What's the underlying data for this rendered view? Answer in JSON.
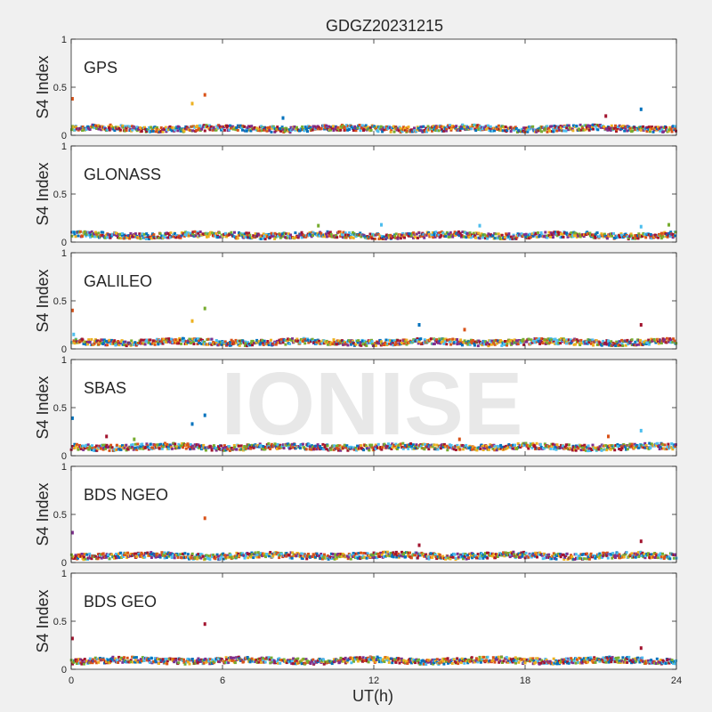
{
  "chart_data": {
    "type": "scatter",
    "title": "GDGZ20231215",
    "xlabel": "UT(h)",
    "ylabel": "S4 Index",
    "xlim": [
      0,
      24
    ],
    "ylim": [
      0,
      1
    ],
    "xticks": [
      "0",
      "6",
      "12",
      "18",
      "24"
    ],
    "yticks": [
      "0",
      "0.5",
      "1"
    ],
    "watermark": "IONISE",
    "colors": [
      "#0072bd",
      "#d95319",
      "#edb120",
      "#7e2f8e",
      "#77ac30",
      "#4dbeee",
      "#a2142f"
    ],
    "panels": [
      {
        "label": "GPS",
        "baseline": 0.07,
        "spikes": [
          {
            "x": 0.05,
            "y": 0.38,
            "series": 1
          },
          {
            "x": 4.8,
            "y": 0.33,
            "series": 2
          },
          {
            "x": 5.3,
            "y": 0.42,
            "series": 1
          },
          {
            "x": 8.4,
            "y": 0.18,
            "series": 0
          },
          {
            "x": 21.2,
            "y": 0.2,
            "series": 6
          },
          {
            "x": 22.6,
            "y": 0.27,
            "series": 0
          }
        ]
      },
      {
        "label": "GLONASS",
        "baseline": 0.07,
        "spikes": [
          {
            "x": 9.8,
            "y": 0.17,
            "series": 4
          },
          {
            "x": 12.3,
            "y": 0.18,
            "series": 5
          },
          {
            "x": 16.2,
            "y": 0.17,
            "series": 5
          },
          {
            "x": 22.6,
            "y": 0.16,
            "series": 5
          },
          {
            "x": 23.7,
            "y": 0.18,
            "series": 4
          }
        ]
      },
      {
        "label": "GALILEO",
        "baseline": 0.07,
        "spikes": [
          {
            "x": 0.05,
            "y": 0.4,
            "series": 1
          },
          {
            "x": 0.1,
            "y": 0.15,
            "series": 5
          },
          {
            "x": 4.8,
            "y": 0.29,
            "series": 2
          },
          {
            "x": 5.3,
            "y": 0.42,
            "series": 4
          },
          {
            "x": 13.8,
            "y": 0.25,
            "series": 0
          },
          {
            "x": 15.6,
            "y": 0.2,
            "series": 1
          },
          {
            "x": 22.6,
            "y": 0.25,
            "series": 6
          }
        ]
      },
      {
        "label": "SBAS",
        "baseline": 0.09,
        "spikes": [
          {
            "x": 0.05,
            "y": 0.39,
            "series": 0
          },
          {
            "x": 1.4,
            "y": 0.2,
            "series": 6
          },
          {
            "x": 2.5,
            "y": 0.17,
            "series": 4
          },
          {
            "x": 4.8,
            "y": 0.33,
            "series": 0
          },
          {
            "x": 5.3,
            "y": 0.42,
            "series": 0
          },
          {
            "x": 15.4,
            "y": 0.17,
            "series": 1
          },
          {
            "x": 21.3,
            "y": 0.2,
            "series": 1
          },
          {
            "x": 22.6,
            "y": 0.26,
            "series": 5
          }
        ]
      },
      {
        "label": "BDS NGEO",
        "baseline": 0.07,
        "spikes": [
          {
            "x": 0.05,
            "y": 0.31,
            "series": 3
          },
          {
            "x": 5.3,
            "y": 0.46,
            "series": 1
          },
          {
            "x": 13.8,
            "y": 0.18,
            "series": 6
          },
          {
            "x": 22.6,
            "y": 0.22,
            "series": 6
          }
        ]
      },
      {
        "label": "BDS GEO",
        "baseline": 0.09,
        "spikes": [
          {
            "x": 0.05,
            "y": 0.32,
            "series": 6
          },
          {
            "x": 5.3,
            "y": 0.47,
            "series": 6
          },
          {
            "x": 22.6,
            "y": 0.22,
            "series": 6
          }
        ]
      }
    ]
  }
}
